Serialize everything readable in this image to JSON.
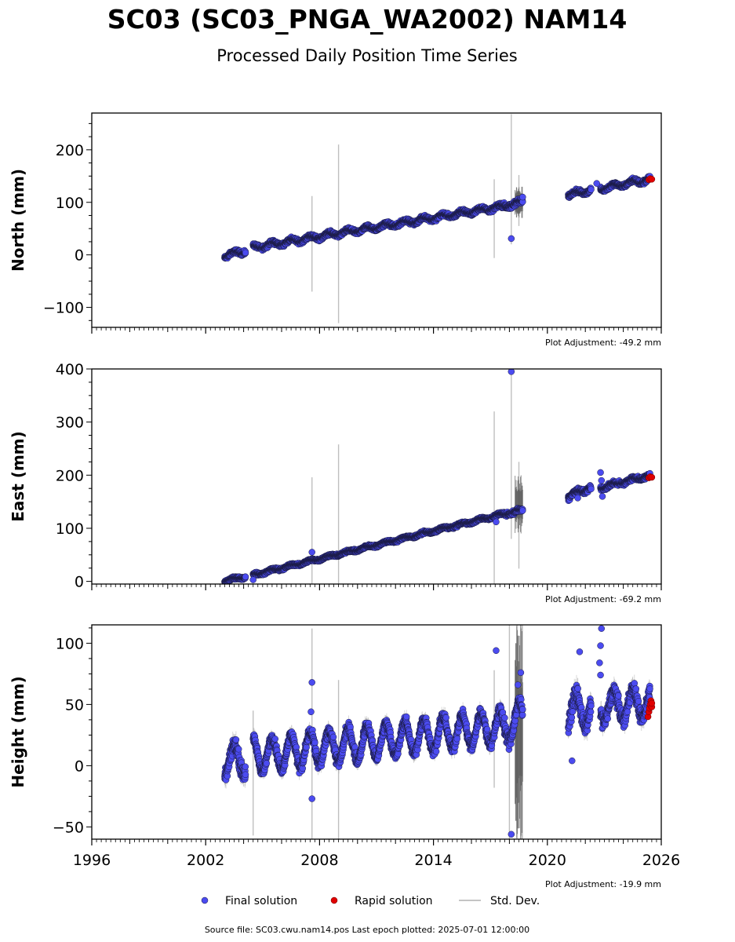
{
  "title": "SC03 (SC03_PNGA_WA2002) NAM14",
  "subtitle": "Processed Daily Position Time Series",
  "legend": {
    "final": "Final solution",
    "rapid": "Rapid solution",
    "stddev": "Std. Dev."
  },
  "source_note": "Source file: SC03.cwu.nam14.pos  Last epoch plotted: 2025-07-01 12:00:00",
  "colors": {
    "final": "#4b4bf0",
    "rapid": "#e00000",
    "stddev": "#b0b0b0",
    "marker_edge": "#1a1a40"
  },
  "chart_data": [
    {
      "type": "scatter",
      "component": "north",
      "ylabel": "North (mm)",
      "ylim": [
        -138,
        270
      ],
      "yticks": [
        -100,
        0,
        100,
        200
      ],
      "ytick_labels": [
        "−100",
        "0",
        "100",
        "200"
      ],
      "xlim": [
        1996,
        2026
      ],
      "xticks": [
        1996,
        2002,
        2008,
        2014,
        2020,
        2026
      ],
      "xtick_labels": [],
      "show_xtick_labels": false,
      "adjustment": "Plot Adjustment: -49.2 mm",
      "final_segments": [
        {
          "start": 2003.0,
          "end": 2004.1,
          "v0": -2,
          "v1": 8,
          "seasonal": 4,
          "noise": 3
        },
        {
          "start": 2004.5,
          "end": 2017.6,
          "v0": 14,
          "v1": 92,
          "seasonal": 4,
          "noise": 3
        },
        {
          "start": 2017.6,
          "end": 2018.7,
          "v0": 92,
          "v1": 100,
          "seasonal": 4,
          "noise": 4
        },
        {
          "start": 2021.1,
          "end": 2022.3,
          "v0": 114,
          "v1": 124,
          "seasonal": 4,
          "noise": 3
        },
        {
          "start": 2022.8,
          "end": 2025.4,
          "v0": 126,
          "v1": 144,
          "seasonal": 4,
          "noise": 3
        }
      ],
      "final_outliers": [
        {
          "x": 2018.1,
          "y": 31
        },
        {
          "x": 2018.7,
          "y": 110
        },
        {
          "x": 2022.6,
          "y": 136
        }
      ],
      "rapid_points": [
        {
          "x": 2025.35,
          "y": 143
        },
        {
          "x": 2025.42,
          "y": 145
        },
        {
          "x": 2025.5,
          "y": 144
        }
      ],
      "stddev_spikes": [
        {
          "x": 2007.6,
          "lo": -70,
          "hi": 112
        },
        {
          "x": 2009.0,
          "lo": -130,
          "hi": 210
        },
        {
          "x": 2017.2,
          "lo": -6,
          "hi": 144
        },
        {
          "x": 2018.1,
          "lo": 20,
          "hi": 268
        },
        {
          "x": 2018.5,
          "lo": 55,
          "hi": 152
        }
      ],
      "dark_band": {
        "start": 2018.3,
        "end": 2018.7,
        "lo": 70,
        "hi": 130
      }
    },
    {
      "type": "scatter",
      "component": "east",
      "ylabel": "East (mm)",
      "ylim": [
        -5,
        400
      ],
      "yticks": [
        0,
        100,
        200,
        300,
        400
      ],
      "ytick_labels": [
        "0",
        "100",
        "200",
        "300",
        "400"
      ],
      "xlim": [
        1996,
        2026
      ],
      "xticks": [
        1996,
        2002,
        2008,
        2014,
        2020,
        2026
      ],
      "xtick_labels": [],
      "show_xtick_labels": false,
      "adjustment": "Plot Adjustment: -69.2 mm",
      "final_segments": [
        {
          "start": 2003.0,
          "end": 2004.1,
          "v0": 1,
          "v1": 9,
          "seasonal": 2,
          "noise": 2
        },
        {
          "start": 2004.5,
          "end": 2017.6,
          "v0": 12,
          "v1": 126,
          "seasonal": 2,
          "noise": 2
        },
        {
          "start": 2017.6,
          "end": 2018.7,
          "v0": 126,
          "v1": 134,
          "seasonal": 2,
          "noise": 3
        },
        {
          "start": 2021.1,
          "end": 2022.3,
          "v0": 160,
          "v1": 178,
          "seasonal": 4,
          "noise": 4
        },
        {
          "start": 2022.8,
          "end": 2025.4,
          "v0": 176,
          "v1": 200,
          "seasonal": 3,
          "noise": 3
        }
      ],
      "final_outliers": [
        {
          "x": 2018.1,
          "y": 395
        },
        {
          "x": 2004.5,
          "y": 3
        },
        {
          "x": 2007.6,
          "y": 55
        },
        {
          "x": 2017.3,
          "y": 112
        },
        {
          "x": 2021.6,
          "y": 157
        },
        {
          "x": 2022.8,
          "y": 205
        },
        {
          "x": 2022.9,
          "y": 160
        },
        {
          "x": 2022.85,
          "y": 190
        }
      ],
      "rapid_points": [
        {
          "x": 2025.35,
          "y": 195
        },
        {
          "x": 2025.42,
          "y": 197
        },
        {
          "x": 2025.5,
          "y": 196
        }
      ],
      "stddev_spikes": [
        {
          "x": 2007.6,
          "lo": -5,
          "hi": 196
        },
        {
          "x": 2009.0,
          "lo": -5,
          "hi": 258
        },
        {
          "x": 2017.2,
          "lo": -5,
          "hi": 320
        },
        {
          "x": 2018.1,
          "lo": 80,
          "hi": 400
        },
        {
          "x": 2018.5,
          "lo": 24,
          "hi": 225
        }
      ],
      "dark_band": {
        "start": 2018.3,
        "end": 2018.7,
        "lo": 90,
        "hi": 200
      }
    },
    {
      "type": "scatter",
      "component": "height",
      "ylabel": "Height (mm)",
      "ylim": [
        -60,
        115
      ],
      "yticks": [
        -50,
        0,
        50,
        100
      ],
      "ytick_labels": [
        "−50",
        "0",
        "50",
        "100"
      ],
      "xlim": [
        1996,
        2026
      ],
      "xticks": [
        1996,
        2002,
        2008,
        2014,
        2020,
        2026
      ],
      "xtick_labels": [
        "1996",
        "2002",
        "2008",
        "2014",
        "2020",
        "2026"
      ],
      "show_xtick_labels": true,
      "adjustment": "Plot Adjustment: -19.9 mm",
      "final_segments": [
        {
          "start": 2003.0,
          "end": 2004.1,
          "v0": 4,
          "v1": 6,
          "seasonal": 12,
          "noise": 5
        },
        {
          "start": 2004.5,
          "end": 2017.6,
          "v0": 8,
          "v1": 32,
          "seasonal": 13,
          "noise": 4
        },
        {
          "start": 2017.6,
          "end": 2018.7,
          "v0": 30,
          "v1": 40,
          "seasonal": 13,
          "noise": 5
        },
        {
          "start": 2021.1,
          "end": 2022.3,
          "v0": 44,
          "v1": 46,
          "seasonal": 13,
          "noise": 6
        },
        {
          "start": 2022.8,
          "end": 2025.4,
          "v0": 48,
          "v1": 52,
          "seasonal": 12,
          "noise": 5
        }
      ],
      "final_outliers": [
        {
          "x": 2007.6,
          "y": 68
        },
        {
          "x": 2007.6,
          "y": -27
        },
        {
          "x": 2007.55,
          "y": 44
        },
        {
          "x": 2017.3,
          "y": 94
        },
        {
          "x": 2018.1,
          "y": -56
        },
        {
          "x": 2018.6,
          "y": 76
        },
        {
          "x": 2021.3,
          "y": 4
        },
        {
          "x": 2021.7,
          "y": 93
        },
        {
          "x": 2022.85,
          "y": 112
        },
        {
          "x": 2022.8,
          "y": 98
        },
        {
          "x": 2022.75,
          "y": 84
        },
        {
          "x": 2022.8,
          "y": 74
        },
        {
          "x": 2018.45,
          "y": 66
        }
      ],
      "rapid_points": [
        {
          "x": 2025.3,
          "y": 40
        },
        {
          "x": 2025.35,
          "y": 44
        },
        {
          "x": 2025.38,
          "y": 47
        },
        {
          "x": 2025.42,
          "y": 50
        },
        {
          "x": 2025.46,
          "y": 53
        },
        {
          "x": 2025.5,
          "y": 48
        },
        {
          "x": 2025.5,
          "y": 51
        }
      ],
      "stddev_spikes": [
        {
          "x": 2004.5,
          "lo": -57,
          "hi": 45
        },
        {
          "x": 2007.6,
          "lo": -60,
          "hi": 112
        },
        {
          "x": 2009.0,
          "lo": -60,
          "hi": 70
        },
        {
          "x": 2017.2,
          "lo": -18,
          "hi": 78
        },
        {
          "x": 2018.0,
          "lo": -60,
          "hi": 115
        },
        {
          "x": 2018.4,
          "lo": -60,
          "hi": 115
        },
        {
          "x": 2018.6,
          "lo": -60,
          "hi": 115
        }
      ],
      "dark_band": {
        "start": 2018.3,
        "end": 2018.7,
        "lo": -60,
        "hi": 115
      }
    }
  ]
}
